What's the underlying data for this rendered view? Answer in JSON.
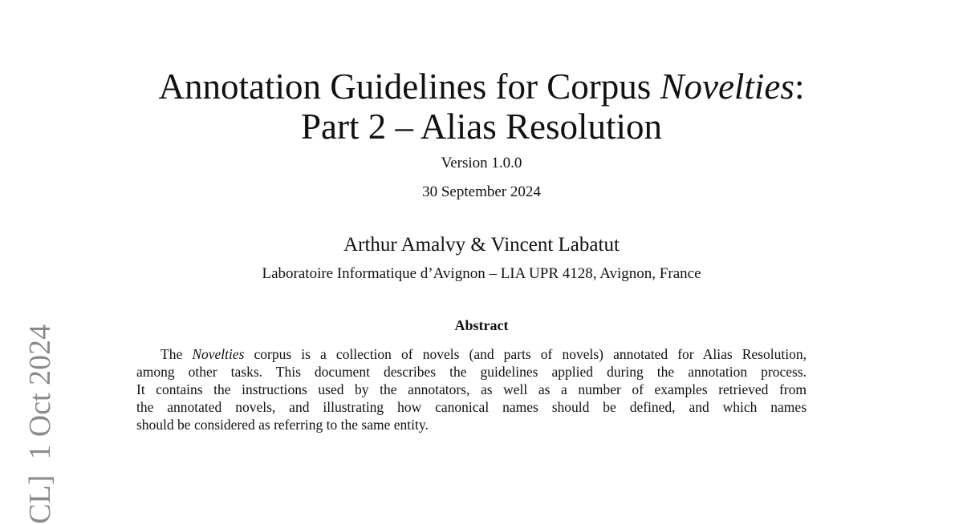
{
  "arxiv_stamp": "CL]  1 Oct 2024",
  "title": {
    "line1_prefix": "Annotation Guidelines for Corpus ",
    "line1_italic": "Novelties",
    "line1_suffix": ":",
    "line2": "Part 2 – Alias Resolution"
  },
  "version": "Version 1.0.0",
  "date": "30 September 2024",
  "authors": "Arthur Amalvy & Vincent Labatut",
  "affiliation": "Laboratoire Informatique d’Avignon – LIA UPR 4128, Avignon, France",
  "abstract": {
    "heading": "Abstract",
    "line1_prefix": "The ",
    "line1_italic": "Novelties",
    "line1_rest": " corpus is a collection of novels (and parts of novels) annotated for Alias Resolution,",
    "line2": "among other tasks. This document describes the guidelines applied during the annotation process.",
    "line3": "It contains the instructions used by the annotators, as well as a number of examples retrieved from",
    "line4": "the annotated novels, and illustrating how canonical names should be defined, and which names",
    "line5": "should be considered as referring to the same entity."
  }
}
